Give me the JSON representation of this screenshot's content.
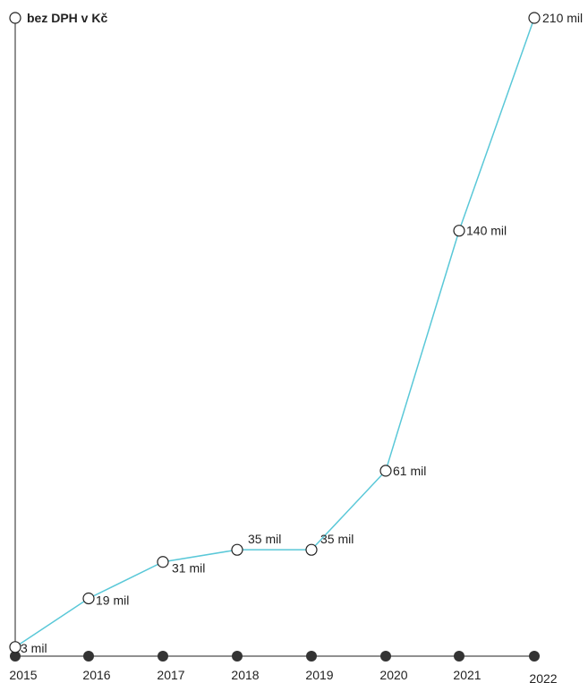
{
  "chart_data": {
    "type": "line",
    "ylabel": "bez DPH v Kč",
    "categories": [
      "2015",
      "2016",
      "2017",
      "2018",
      "2019",
      "2020",
      "2021",
      "2022"
    ],
    "values": [
      3,
      19,
      31,
      35,
      35,
      61,
      140,
      210
    ],
    "data_labels": [
      "3 mil",
      "19 mil",
      "31 mil",
      "35 mil",
      "35 mil",
      "61 mil",
      "140 mil",
      "210 mil"
    ],
    "ylim": [
      0,
      210
    ],
    "grid": false,
    "legend": "none",
    "colors": {
      "line": "#5ac8d8",
      "axis": "#222222",
      "marker_fill": "#ffffff",
      "tick_dot": "#333333"
    }
  }
}
